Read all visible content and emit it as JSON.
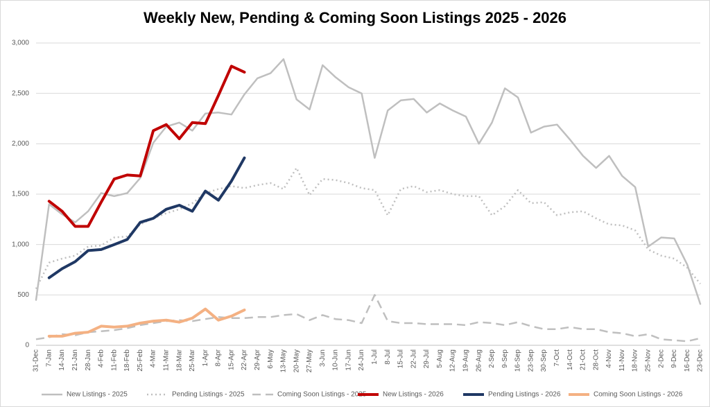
{
  "chart_data": {
    "type": "line",
    "title": "Weekly New, Pending & Coming Soon Listings 2025 - 2026",
    "categories": [
      "31-Dec",
      "7-Jan",
      "14-Jan",
      "21-Jan",
      "28-Jan",
      "4-Feb",
      "11-Feb",
      "18-Feb",
      "25-Feb",
      "4-Mar",
      "11-Mar",
      "18-Mar",
      "25-Mar",
      "1-Apr",
      "8-Apr",
      "15-Apr",
      "22-Apr",
      "29-Apr",
      "6-May",
      "13-May",
      "20-May",
      "27-May",
      "3-Jun",
      "10-Jun",
      "17-Jun",
      "24-Jun",
      "1-Jul",
      "8-Jul",
      "15-Jul",
      "22-Jul",
      "29-Jul",
      "5-Aug",
      "12-Aug",
      "19-Aug",
      "26-Aug",
      "2-Sep",
      "9-Sep",
      "16-Sep",
      "23-Sep",
      "30-Sep",
      "7-Oct",
      "14-Oct",
      "21-Oct",
      "28-Oct",
      "4-Nov",
      "11-Nov",
      "18-Nov",
      "25-Nov",
      "2-Dec",
      "9-Dec",
      "16-Dec",
      "23-Dec"
    ],
    "ylim": [
      0,
      3000
    ],
    "yticks": [
      0,
      500,
      {
        "value": 1000,
        "label": "1,000"
      },
      {
        "value": 1500,
        "label": "1,500"
      },
      {
        "value": 2000,
        "label": "2,000"
      },
      {
        "value": 2500,
        "label": "2,500"
      },
      {
        "value": 3000,
        "label": "3,000"
      }
    ],
    "grid": true,
    "legend": "bottom",
    "series": [
      {
        "name": "New Listings - 2025",
        "color": "#bfbfbf",
        "style": "solid",
        "width": 2.5,
        "values": [
          450,
          1400,
          1300,
          1220,
          1330,
          1510,
          1480,
          1510,
          1660,
          2010,
          2170,
          2210,
          2130,
          2300,
          2310,
          2290,
          2490,
          2650,
          2700,
          2840,
          2440,
          2340,
          2780,
          2660,
          2560,
          2500,
          1860,
          2330,
          2430,
          2445,
          2310,
          2400,
          2330,
          2270,
          2000,
          2210,
          2550,
          2460,
          2110,
          2170,
          2190,
          2040,
          1880,
          1760,
          1880,
          1680,
          1570,
          980,
          1070,
          1060,
          800,
          410
        ]
      },
      {
        "name": "Pending Listings - 2025",
        "color": "#bfbfbf",
        "style": "dotted",
        "width": 2.5,
        "values": [
          560,
          820,
          860,
          890,
          980,
          990,
          1070,
          1080,
          1200,
          1260,
          1310,
          1350,
          1410,
          1510,
          1550,
          1580,
          1560,
          1590,
          1610,
          1550,
          1760,
          1490,
          1650,
          1640,
          1610,
          1560,
          1540,
          1290,
          1550,
          1580,
          1520,
          1540,
          1500,
          1480,
          1480,
          1290,
          1380,
          1540,
          1410,
          1420,
          1290,
          1320,
          1330,
          1260,
          1200,
          1190,
          1140,
          950,
          890,
          860,
          770,
          610
        ]
      },
      {
        "name": "Coming Soon Listings - 2025",
        "color": "#bfbfbf",
        "style": "dashed",
        "width": 2.5,
        "values": [
          60,
          80,
          110,
          100,
          130,
          140,
          150,
          170,
          200,
          220,
          240,
          250,
          240,
          260,
          280,
          270,
          270,
          280,
          280,
          300,
          310,
          250,
          300,
          260,
          250,
          220,
          500,
          240,
          220,
          220,
          210,
          210,
          210,
          200,
          230,
          220,
          200,
          230,
          190,
          160,
          160,
          180,
          160,
          160,
          130,
          120,
          90,
          110,
          60,
          50,
          40,
          70
        ]
      },
      {
        "name": "New Listings - 2026",
        "color": "#c00000",
        "style": "solid",
        "width": 4,
        "values": [
          null,
          1430,
          1330,
          1180,
          1180,
          1420,
          1650,
          1690,
          1680,
          2130,
          2190,
          2050,
          2210,
          2200,
          2480,
          2770,
          2710,
          null,
          null,
          null,
          null,
          null,
          null,
          null,
          null,
          null,
          null,
          null,
          null,
          null,
          null,
          null,
          null,
          null,
          null,
          null,
          null,
          null,
          null,
          null,
          null,
          null,
          null,
          null,
          null,
          null,
          null,
          null,
          null,
          null,
          null,
          null
        ]
      },
      {
        "name": "Pending Listings - 2026",
        "color": "#1f3864",
        "style": "solid",
        "width": 4,
        "values": [
          null,
          670,
          760,
          830,
          940,
          950,
          1000,
          1050,
          1220,
          1260,
          1350,
          1390,
          1330,
          1530,
          1440,
          1630,
          1860,
          null,
          null,
          null,
          null,
          null,
          null,
          null,
          null,
          null,
          null,
          null,
          null,
          null,
          null,
          null,
          null,
          null,
          null,
          null,
          null,
          null,
          null,
          null,
          null,
          null,
          null,
          null,
          null,
          null,
          null,
          null,
          null,
          null,
          null,
          null
        ]
      },
      {
        "name": "Coming Soon Listings - 2026",
        "color": "#f4b183",
        "style": "solid",
        "width": 4,
        "values": [
          null,
          90,
          90,
          120,
          130,
          190,
          180,
          190,
          220,
          240,
          250,
          230,
          270,
          360,
          250,
          290,
          350,
          null,
          null,
          null,
          null,
          null,
          null,
          null,
          null,
          null,
          null,
          null,
          null,
          null,
          null,
          null,
          null,
          null,
          null,
          null,
          null,
          null,
          null,
          null,
          null,
          null,
          null,
          null,
          null,
          null,
          null,
          null,
          null,
          null,
          null,
          null
        ]
      }
    ]
  }
}
